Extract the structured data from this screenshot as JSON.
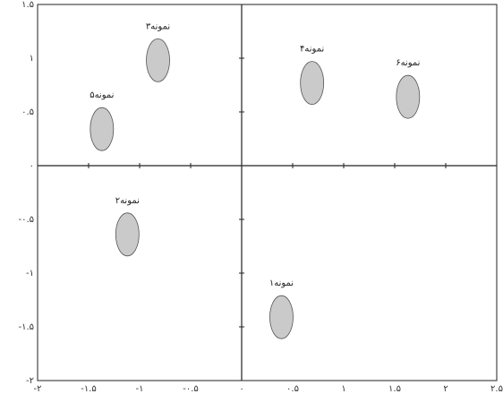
{
  "chart_data": {
    "type": "scatter",
    "x": [
      0.39,
      -1.12,
      -0.82,
      0.69,
      -1.37,
      1.63
    ],
    "values": [
      -1.41,
      -0.64,
      0.98,
      0.77,
      0.34,
      0.64
    ],
    "point_labels": [
      "نمونه۱",
      "نمونه۲",
      "نمونه۳",
      "نمونه۴",
      "نمونه۵",
      "نمونه۶"
    ],
    "color": "#8a8a8a",
    "xlim": [
      -2,
      2.5
    ],
    "ylim": [
      -2,
      1.5
    ],
    "xticks": [
      {
        "value": -2,
        "label": "-۲"
      },
      {
        "value": -1.5,
        "label": "-۱.۵"
      },
      {
        "value": -1,
        "label": "-۱"
      },
      {
        "value": -0.5,
        "label": "-۰.۵"
      },
      {
        "value": 0,
        "label": "۰"
      },
      {
        "value": 0.5,
        "label": "۰.۵"
      },
      {
        "value": 1,
        "label": "۱"
      },
      {
        "value": 1.5,
        "label": "۱.۵"
      },
      {
        "value": 2,
        "label": "۲"
      },
      {
        "value": 2.5,
        "label": "۲.۵"
      }
    ],
    "yticks": [
      {
        "value": -2,
        "label": "-۲"
      },
      {
        "value": -1.5,
        "label": "-۱.۵"
      },
      {
        "value": -1,
        "label": "-۱"
      },
      {
        "value": -0.5,
        "label": "-۰.۵"
      },
      {
        "value": 0,
        "label": "۰"
      },
      {
        "value": 0.5,
        "label": "۰.۵"
      },
      {
        "value": 1,
        "label": "۱"
      },
      {
        "value": 1.5,
        "label": "۱.۵"
      }
    ]
  }
}
